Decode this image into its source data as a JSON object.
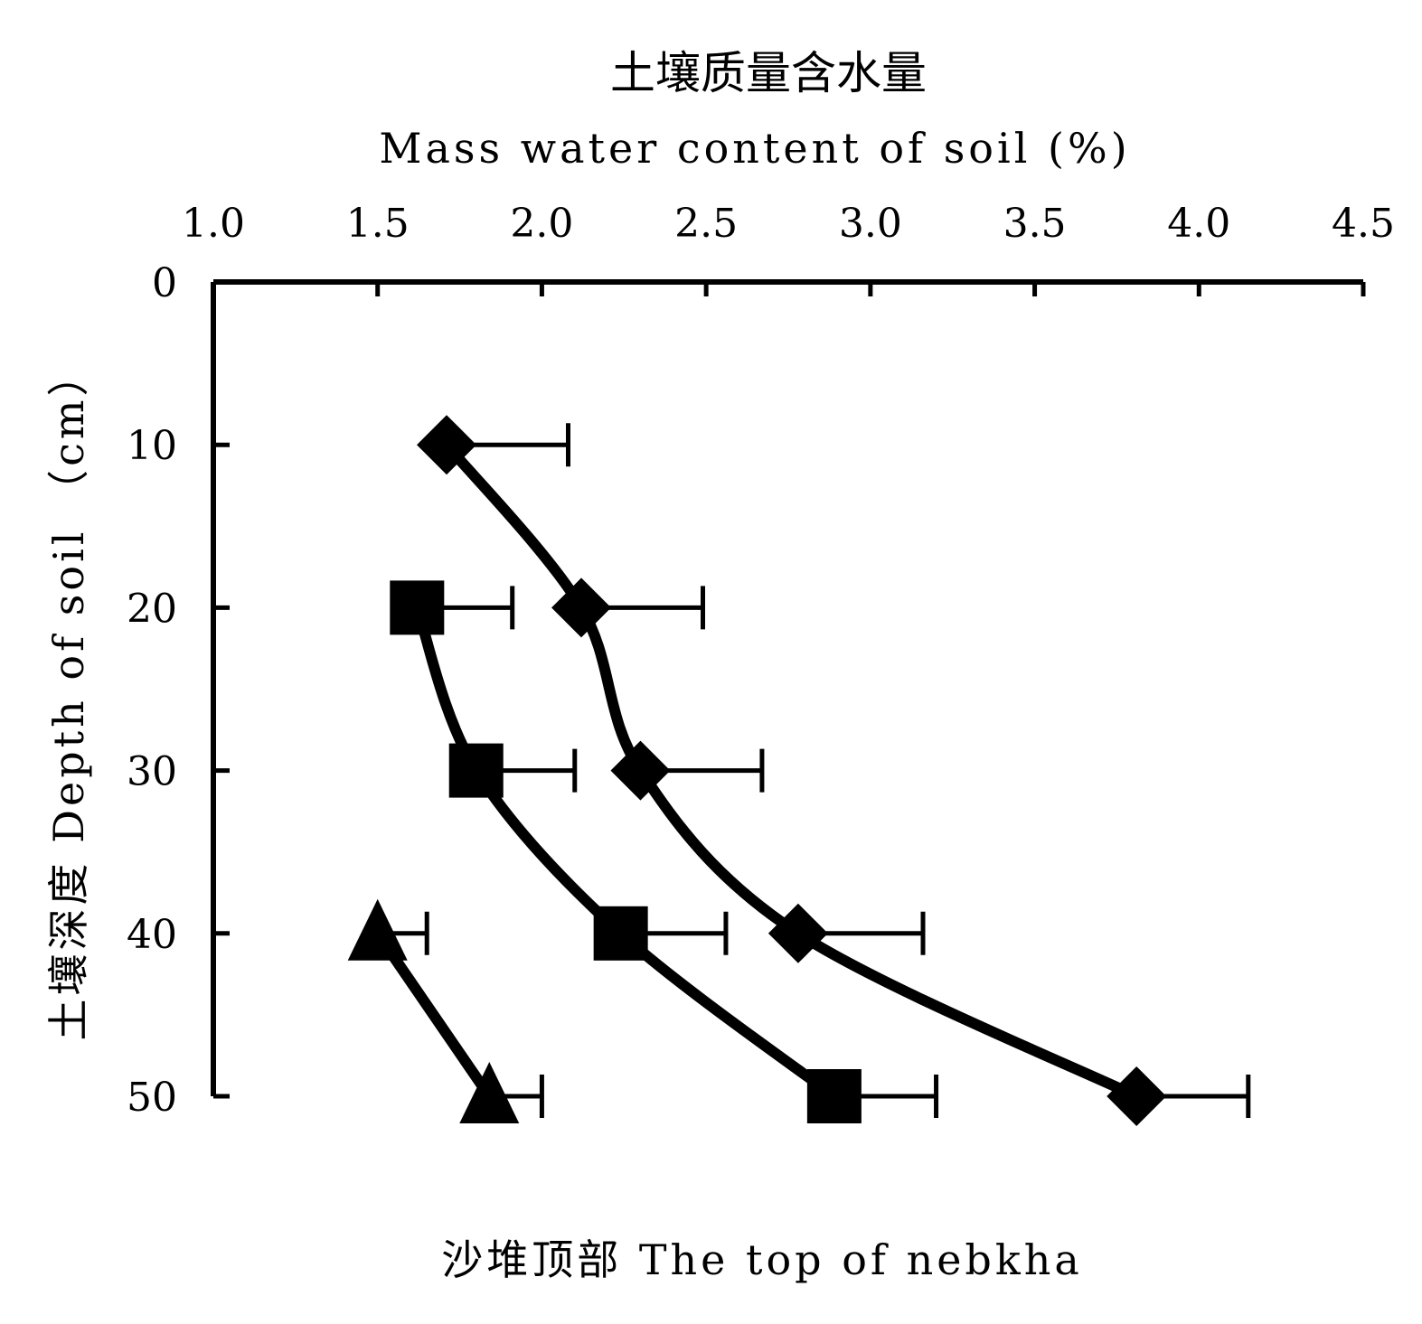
{
  "chart_data": {
    "type": "line",
    "title_cn": "土壤质量含水量",
    "xlabel": "Mass water content of soil (%)",
    "ylabel": "土壤深度 Depth of soil （cm）",
    "caption": "沙堆顶部  The top of nebkha",
    "xlim": [
      1.0,
      4.5
    ],
    "ylim": [
      0,
      50
    ],
    "x_ticks": [
      "1.0",
      "1.5",
      "2.0",
      "2.5",
      "3.0",
      "3.5",
      "4.0",
      "4.5"
    ],
    "y_ticks": [
      "0",
      "10",
      "20",
      "30",
      "40",
      "50"
    ],
    "x_axis_position": "top",
    "y_axis_inverted": true,
    "grid": false,
    "legend": "none",
    "series": [
      {
        "marker": "diamond",
        "points": [
          {
            "depth": 10,
            "x": 1.71,
            "err": 0.37
          },
          {
            "depth": 20,
            "x": 2.12,
            "err": 0.37
          },
          {
            "depth": 30,
            "x": 2.3,
            "err": 0.37
          },
          {
            "depth": 40,
            "x": 2.78,
            "err": 0.38
          },
          {
            "depth": 50,
            "x": 3.81,
            "err": 0.34
          }
        ]
      },
      {
        "marker": "square",
        "points": [
          {
            "depth": 20,
            "x": 1.62,
            "err": 0.29
          },
          {
            "depth": 30,
            "x": 1.8,
            "err": 0.3
          },
          {
            "depth": 40,
            "x": 2.24,
            "err": 0.32
          },
          {
            "depth": 50,
            "x": 2.89,
            "err": 0.31
          }
        ]
      },
      {
        "marker": "triangle",
        "points": [
          {
            "depth": 40,
            "x": 1.5,
            "err": 0.15
          },
          {
            "depth": 50,
            "x": 1.84,
            "err": 0.16
          }
        ]
      }
    ]
  }
}
